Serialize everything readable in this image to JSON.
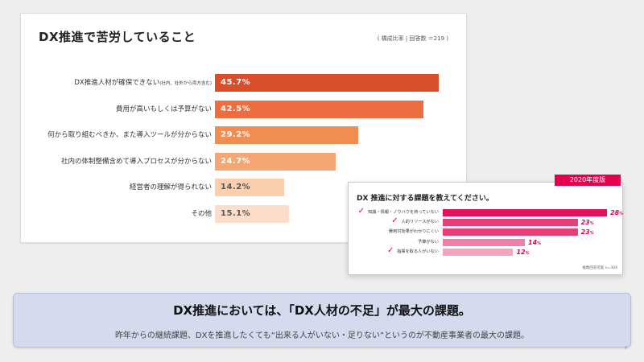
{
  "main": {
    "title": "DX推進で苦労していること",
    "note": "( 構成比率 | 回答数 ＝219 )"
  },
  "chart_data": [
    {
      "type": "bar",
      "orientation": "horizontal",
      "title": "DX推進で苦労していること",
      "categories": [
        "DX推進人材が確保できない(社内、社外から両方含む)",
        "費用が高いもしくは予算がない",
        "何から取り組むべきか、また導入ツールが分からない",
        "社内の体制整備含めて導入プロセスが分からない",
        "経営者の理解が得られない",
        "その他"
      ],
      "label_main": [
        "DX推進人材が確保できない",
        "費用が高いもしくは予算がない",
        "何から取り組むべきか、また導入ツールが分からない",
        "社内の体制整備含めて導入プロセスが分からない",
        "経営者の理解が得られない",
        "その他"
      ],
      "label_small": [
        "(社内、社外から両方含む)",
        "",
        "",
        "",
        "",
        ""
      ],
      "values": [
        45.7,
        42.5,
        29.2,
        24.7,
        14.2,
        15.1
      ],
      "value_labels": [
        "45.7%",
        "42.5%",
        "29.2%",
        "24.7%",
        "14.2%",
        "15.1%"
      ],
      "unit": "%",
      "colors": [
        "#d94e2a",
        "#ec6d3f",
        "#f28d52",
        "#f6a673",
        "#fbcfae",
        "#fcddc9"
      ],
      "value_text_colors": [
        "#ffffff",
        "#ffffff",
        "#ffffff",
        "#ffffff",
        "#555555",
        "#555555"
      ]
    },
    {
      "type": "bar",
      "orientation": "horizontal",
      "title": "DX 推進に対する課題を教えてください。",
      "categories": [
        "知識・情報・ノウハウを持っていない",
        "人的リソースがない",
        "費用対効果がわかりにくい",
        "予算がない",
        "指揮を取る人がいない"
      ],
      "values": [
        28,
        23,
        23,
        14,
        12
      ],
      "value_labels": [
        "28",
        "23",
        "23",
        "14",
        "12"
      ],
      "unit": "%",
      "checked": [
        true,
        true,
        false,
        false,
        true
      ],
      "colors": [
        "#e0105a",
        "#e63f7a",
        "#e63f7a",
        "#ef7fa8",
        "#f4a3c1"
      ]
    }
  ],
  "panel2020": {
    "badge": "2020年度版",
    "title": "DX 推進に対する課題を教えてください。",
    "note": "複数回答可能 n=304",
    "check_glyph": "✓"
  },
  "banner": {
    "headline": "DX推進においては、「DX人材の不足」が最大の課題。",
    "sub": "昨年からの継続課題、DXを推進したくても“出来る人がいない・足りない”というのが不動産事業者の最大の課題。"
  },
  "page": {
    "number": "6"
  }
}
